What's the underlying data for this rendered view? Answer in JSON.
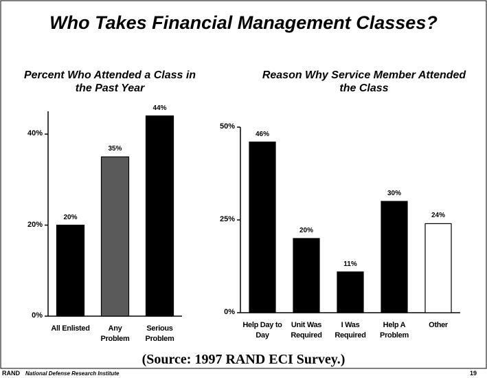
{
  "slide_title": "Who Takes Financial Management Classes?",
  "source": "(Source:  1997 RAND ECI Survey.)",
  "footer_org": "RAND",
  "footer_name": "National Defense Research Institute",
  "page_number": "19",
  "chart_data": [
    {
      "type": "bar",
      "title": "Percent Who Attended a Class in the Past Year",
      "categories": [
        "All Enlisted",
        "Any Problem",
        "Serious Problem"
      ],
      "values": [
        20,
        35,
        44
      ],
      "value_labels": [
        "20%",
        "35%",
        "44%"
      ],
      "colors": [
        "#000000",
        "#5a5a5a",
        "#000000"
      ],
      "ylim": [
        0,
        45
      ],
      "yticks": [
        {
          "value": 0,
          "label": "0%"
        },
        {
          "value": 20,
          "label": "20%"
        },
        {
          "value": 40,
          "label": "40%"
        }
      ]
    },
    {
      "type": "bar",
      "title": "Reason Why Service Member Attended the Class",
      "categories": [
        "Help Day to Day",
        "Unit Was Required",
        "I Was Required",
        "Help A Problem",
        "Other"
      ],
      "values": [
        46,
        20,
        11,
        30,
        24
      ],
      "value_labels": [
        "46%",
        "20%",
        "11%",
        "30%",
        "24%"
      ],
      "colors": [
        "#000000",
        "#000000",
        "#000000",
        "#000000",
        "#ffffff"
      ],
      "ylim": [
        0,
        50
      ],
      "yticks": [
        {
          "value": 0,
          "label": "0%"
        },
        {
          "value": 25,
          "label": "25%"
        },
        {
          "value": 50,
          "label": "50%"
        }
      ]
    }
  ]
}
